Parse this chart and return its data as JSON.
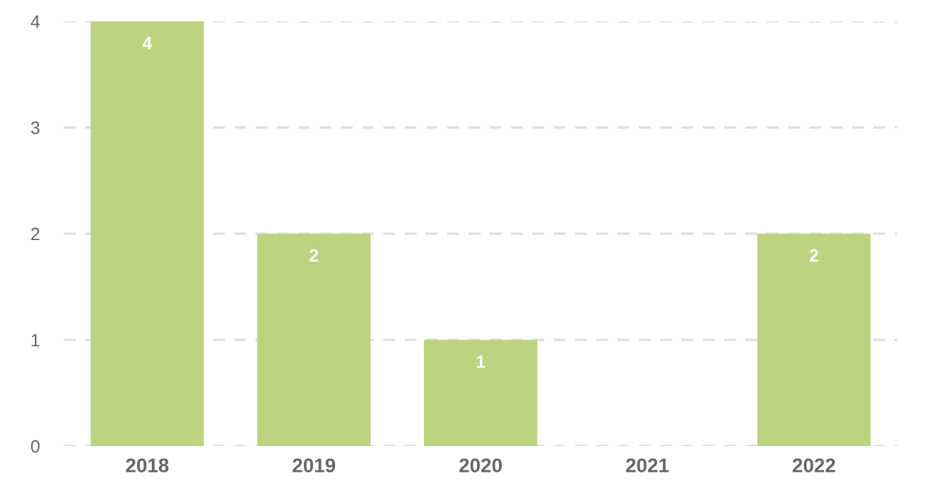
{
  "chart_data": {
    "type": "bar",
    "categories": [
      "2018",
      "2019",
      "2020",
      "2021",
      "2022"
    ],
    "values": [
      4,
      2,
      1,
      0,
      2
    ],
    "value_labels": [
      "4",
      "2",
      "1",
      null,
      "2"
    ],
    "color": "#bdd37f",
    "ylim": [
      0,
      4
    ],
    "yticks": [
      0,
      1,
      2,
      3,
      4
    ],
    "grid": "y"
  }
}
